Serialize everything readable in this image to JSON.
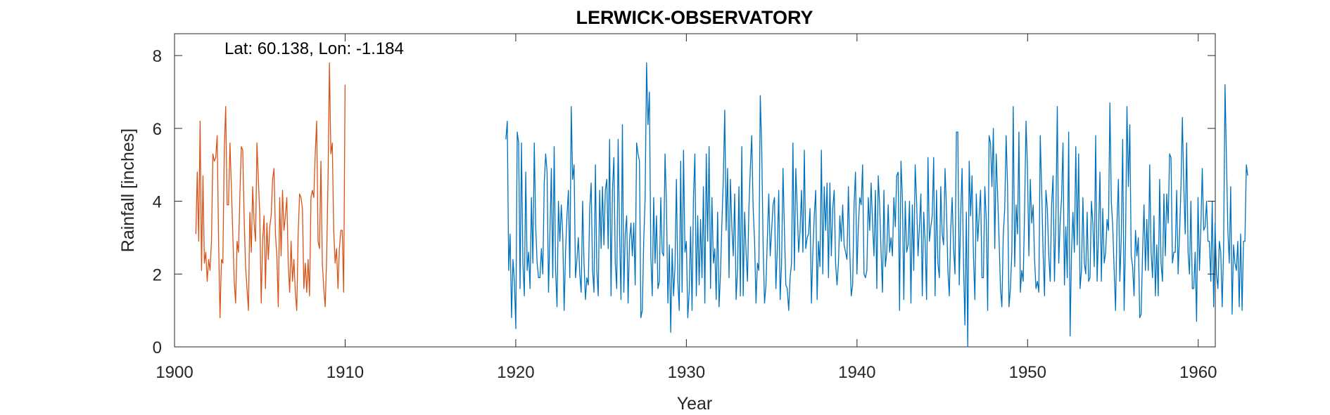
{
  "chart_data": {
    "type": "line",
    "title": "LERWICK-OBSERVATORY",
    "xlabel": "Year",
    "ylabel": "Rainfall [inches]",
    "annotation": "Lat: 60.138, Lon: -1.184",
    "xlim": [
      1900,
      1961
    ],
    "ylim": [
      0,
      8.6
    ],
    "xticks": [
      1900,
      1910,
      1920,
      1930,
      1940,
      1950,
      1960
    ],
    "yticks": [
      0,
      2,
      4,
      6,
      8
    ],
    "grid": false,
    "series": [
      {
        "color": "#D95319",
        "x_start": 1901.25,
        "step": 0.0833,
        "values": [
          3.1,
          4.8,
          2.9,
          6.2,
          2.1,
          4.7,
          2.3,
          2.6,
          1.8,
          2.4,
          2.1,
          2.9,
          5.3,
          5.1,
          5.2,
          5.8,
          2.9,
          0.8,
          2.4,
          2.3,
          5.4,
          6.6,
          3.9,
          3.9,
          5.6,
          4.4,
          3.1,
          1.8,
          1.2,
          2.9,
          2.6,
          4.2,
          5.5,
          5.4,
          3.5,
          2.2,
          1.6,
          1.0,
          3.7,
          2.6,
          4.4,
          3.4,
          2.9,
          5.6,
          4.6,
          3.6,
          1.2,
          2.9,
          3.6,
          1.6,
          3.4,
          2.4,
          3.3,
          3.6,
          4.6,
          4.9,
          3.1,
          2.5,
          1.1,
          4.1,
          2.5,
          4.3,
          3.2,
          3.6,
          4.1,
          2.3,
          1.5,
          2.9,
          1.8,
          2.4,
          1.5,
          1.0,
          3.1,
          4.2,
          4.1,
          3.8,
          1.6,
          2.3,
          1.5,
          2.4,
          1.4,
          4.1,
          4.3,
          4.1,
          5.3,
          6.2,
          2.9,
          2.7,
          5.1,
          2.3,
          1.6,
          1.1,
          2.4,
          4.6,
          7.8,
          5.3,
          5.6,
          3.2,
          2.3,
          2.7,
          1.6,
          2.7,
          3.2,
          3.2,
          1.5,
          7.2
        ]
      },
      {
        "color": "#0072BD",
        "x_start": 1919.42,
        "step": 0.0833,
        "values": [
          5.7,
          6.2,
          2.1,
          3.1,
          0.8,
          2.4,
          1.8,
          0.5,
          5.9,
          5.6,
          1.6,
          5.6,
          2.3,
          1.4,
          4.8,
          2.1,
          2.6,
          1.6,
          4.1,
          2.3,
          5.6,
          3.3,
          2.3,
          1.9,
          1.9,
          2.7,
          2.0,
          4.5,
          5.3,
          4.8,
          1.5,
          3.1,
          4.9,
          1.9,
          5.5,
          2.1,
          1.1,
          4.0,
          2.9,
          3.9,
          3.1,
          1.0,
          2.6,
          3.6,
          4.3,
          1.9,
          6.6,
          4.6,
          5.0,
          1.9,
          2.4,
          3.0,
          2.0,
          1.5,
          4.0,
          2.3,
          1.3,
          1.9,
          1.7,
          3.8,
          4.5,
          2.1,
          1.5,
          5.0,
          2.1,
          1.4,
          4.3,
          2.7,
          4.4,
          2.8,
          4.3,
          4.6,
          2.7,
          5.7,
          1.4,
          4.3,
          5.2,
          2.3,
          1.6,
          5.7,
          3.1,
          1.3,
          6.1,
          1.5,
          3.1,
          3.6,
          1.2,
          2.9,
          3.4,
          2.5,
          3.4,
          1.7,
          5.6,
          5.3,
          5.1,
          0.8,
          1.0,
          2.9,
          4.1,
          7.8,
          6.1,
          7.0,
          2.5,
          1.4,
          4.1,
          2.3,
          3.6,
          1.6,
          1.8,
          4.1,
          2.6,
          2.5,
          5.3,
          3.9,
          1.2,
          2.8,
          0.4,
          2.7,
          1.4,
          2.2,
          4.6,
          1.8,
          1.0,
          5.1,
          1.5,
          5.4,
          2.6,
          2.9,
          0.8,
          1.5,
          3.3,
          1.0,
          4.1,
          5.3,
          1.4,
          3.6,
          1.7,
          3.5,
          1.9,
          4.4,
          1.2,
          5.3,
          2.9,
          5.5,
          1.6,
          4.1,
          2.3,
          2.7,
          1.3,
          3.7,
          1.1,
          2.0,
          3.4,
          4.6,
          6.5,
          3.2,
          4.9,
          1.9,
          4.6,
          3.3,
          2.5,
          4.2,
          1.3,
          2.1,
          4.4,
          1.4,
          5.5,
          1.4,
          3.7,
          2.6,
          1.8,
          3.8,
          4.9,
          5.8,
          3.8,
          2.9,
          1.2,
          2.3,
          2.1,
          6.9,
          5.5,
          2.8,
          1.2,
          1.7,
          3.0,
          4.2,
          2.5,
          3.2,
          3.9,
          4.1,
          1.6,
          2.7,
          4.3,
          1.3,
          2.3,
          4.9,
          3.2,
          1.7,
          1.6,
          1.0,
          1.9,
          2.3,
          5.6,
          2.1,
          4.9,
          3.8,
          2.6,
          3.2,
          4.3,
          2.6,
          5.4,
          2.7,
          3.0,
          3.1,
          3.8,
          1.2,
          2.6,
          3.6,
          4.3,
          1.3,
          2.9,
          2.2,
          5.4,
          2.0,
          4.4,
          3.2,
          4.5,
          1.9,
          4.5,
          2.5,
          3.8,
          4.3,
          2.3,
          1.7,
          2.3,
          3.6,
          2.9,
          3.9,
          2.8,
          2.6,
          2.4,
          4.4,
          2.6,
          1.4,
          1.7,
          3.9,
          4.8,
          2.0,
          3.3,
          4.1,
          3.9,
          5.0,
          2.0,
          1.9,
          2.1,
          4.1,
          3.2,
          4.5,
          3.4,
          2.5,
          4.3,
          1.6,
          4.7,
          3.9,
          2.6,
          1.5,
          4.3,
          2.2,
          2.6,
          3.9,
          2.6,
          3.0,
          2.5,
          4.1,
          3.3,
          4.7,
          4.8,
          1.0,
          5.1,
          4.1,
          1.3,
          4.0,
          2.6,
          2.8,
          4.0,
          1.2,
          3.9,
          2.1,
          5.0,
          4.0,
          2.5,
          3.3,
          4.2,
          1.4,
          3.7,
          2.9,
          1.3,
          5.2,
          2.9,
          3.3,
          3.6,
          5.2,
          1.4,
          4.3,
          2.3,
          1.9,
          4.4,
          3.1,
          2.8,
          4.9,
          3.8,
          2.1,
          1.4,
          3.2,
          4.1,
          2.7,
          2.0,
          5.9,
          5.9,
          1.7,
          3.6,
          4.9,
          2.3,
          0.6,
          3.7,
          0.0,
          5.1,
          3.6,
          4.7,
          2.5,
          1.3,
          4.2,
          2.9,
          3.6,
          4.3,
          1.9,
          1.9,
          4.4,
          3.5,
          1.0,
          5.8,
          5.6,
          4.4,
          6.0,
          2.7,
          5.3,
          4.2,
          3.0,
          1.6,
          1.1,
          3.1,
          3.8,
          5.8,
          4.4,
          1.1,
          1.6,
          2.6,
          6.6,
          2.2,
          3.9,
          3.1,
          5.9,
          1.5,
          2.1,
          1.8,
          3.8,
          6.2,
          4.9,
          2.5,
          4.6,
          3.4,
          3.9,
          2.4,
          1.6,
          1.8,
          1.5,
          5.8,
          4.3,
          2.6,
          1.4,
          4.3,
          3.8,
          2.5,
          1.8,
          3.9,
          4.7,
          1.8,
          3.6,
          6.6,
          2.3,
          3.4,
          4.1,
          5.6,
          1.7,
          3.3,
          1.9,
          5.9,
          0.3,
          2.6,
          3.7,
          2.6,
          5.5,
          2.8,
          5.3,
          1.6,
          2.1,
          4.1,
          2.3,
          2.0,
          3.7,
          1.8,
          1.9,
          4.0,
          3.4,
          2.2,
          5.8,
          1.8,
          3.1,
          4.8,
          1.8,
          3.8,
          2.3,
          2.6,
          3.5,
          3.2,
          6.7,
          4.0,
          3.3,
          2.1,
          1.0,
          3.4,
          4.6,
          1.8,
          3.0,
          5.7,
          1.0,
          2.9,
          6.6,
          4.4,
          6.1,
          2.5,
          2.2,
          1.4,
          3.2,
          2.5,
          3.0,
          0.8,
          0.9,
          2.6,
          3.9,
          2.1,
          3.5,
          2.1,
          5.0,
          2.6,
          1.9,
          3.6,
          1.4,
          2.8,
          1.4,
          4.6,
          2.3,
          1.8,
          4.2,
          2.5,
          4.2,
          3.4,
          5.3,
          5.2,
          2.3,
          2.6,
          2.6,
          4.3,
          2.0,
          3.1,
          4.4,
          6.3,
          4.4,
          3.1,
          5.6,
          2.6,
          2.0,
          4.0,
          1.6,
          1.6,
          2.6,
          0.7,
          4.1,
          2.1,
          3.3,
          4.9,
          3.2,
          3.3,
          4.0,
          2.9,
          2.9,
          1.8,
          4.0,
          1.1,
          3.4,
          2.0,
          1.6,
          2.9,
          2.6,
          1.1,
          2.7,
          7.2,
          5.2,
          3.2,
          2.3,
          4.4,
          0.9,
          2.8,
          2.3,
          2.1,
          2.9,
          1.1,
          3.1,
          1.0,
          2.9,
          2.9,
          5.0,
          4.7
        ]
      }
    ]
  }
}
